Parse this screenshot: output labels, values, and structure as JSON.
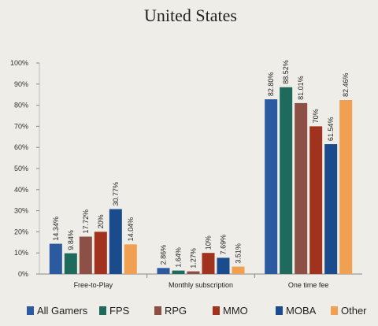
{
  "chart_data": {
    "type": "bar",
    "title": "United States",
    "categories": [
      "Free-to-Play",
      "Monthly subscription",
      "One time fee"
    ],
    "series": [
      {
        "name": "All Gamers",
        "color": "#2c5aa0",
        "values": [
          14.34,
          2.86,
          82.8
        ],
        "labels": [
          "14.34%",
          "2.86%",
          "82.80%"
        ]
      },
      {
        "name": "FPS",
        "color": "#1e6b5e",
        "values": [
          9.84,
          1.64,
          88.52
        ],
        "labels": [
          "9.84%",
          "1.64%",
          "88.52%"
        ]
      },
      {
        "name": "RPG",
        "color": "#8c5046",
        "values": [
          17.72,
          1.27,
          81.01
        ],
        "labels": [
          "17.72%",
          "1.27%",
          "81.01%"
        ]
      },
      {
        "name": "MMO",
        "color": "#a0321e",
        "values": [
          20,
          10,
          70
        ],
        "labels": [
          "20%",
          "10%",
          "70%"
        ]
      },
      {
        "name": "MOBA",
        "color": "#1a4b8c",
        "values": [
          30.77,
          7.69,
          61.54
        ],
        "labels": [
          "30.77%",
          "7.69%",
          "61.54%"
        ]
      },
      {
        "name": "Other",
        "color": "#f0a050",
        "values": [
          14.04,
          3.51,
          82.46
        ],
        "labels": [
          "14.04%",
          "3.51%",
          "82.46%"
        ]
      }
    ],
    "yticks": [
      "0%",
      "10%",
      "20%",
      "30%",
      "40%",
      "50%",
      "60%",
      "70%",
      "80%",
      "90%",
      "100%"
    ],
    "ylim": [
      0,
      100
    ],
    "grid": false,
    "legend": "bottom"
  }
}
